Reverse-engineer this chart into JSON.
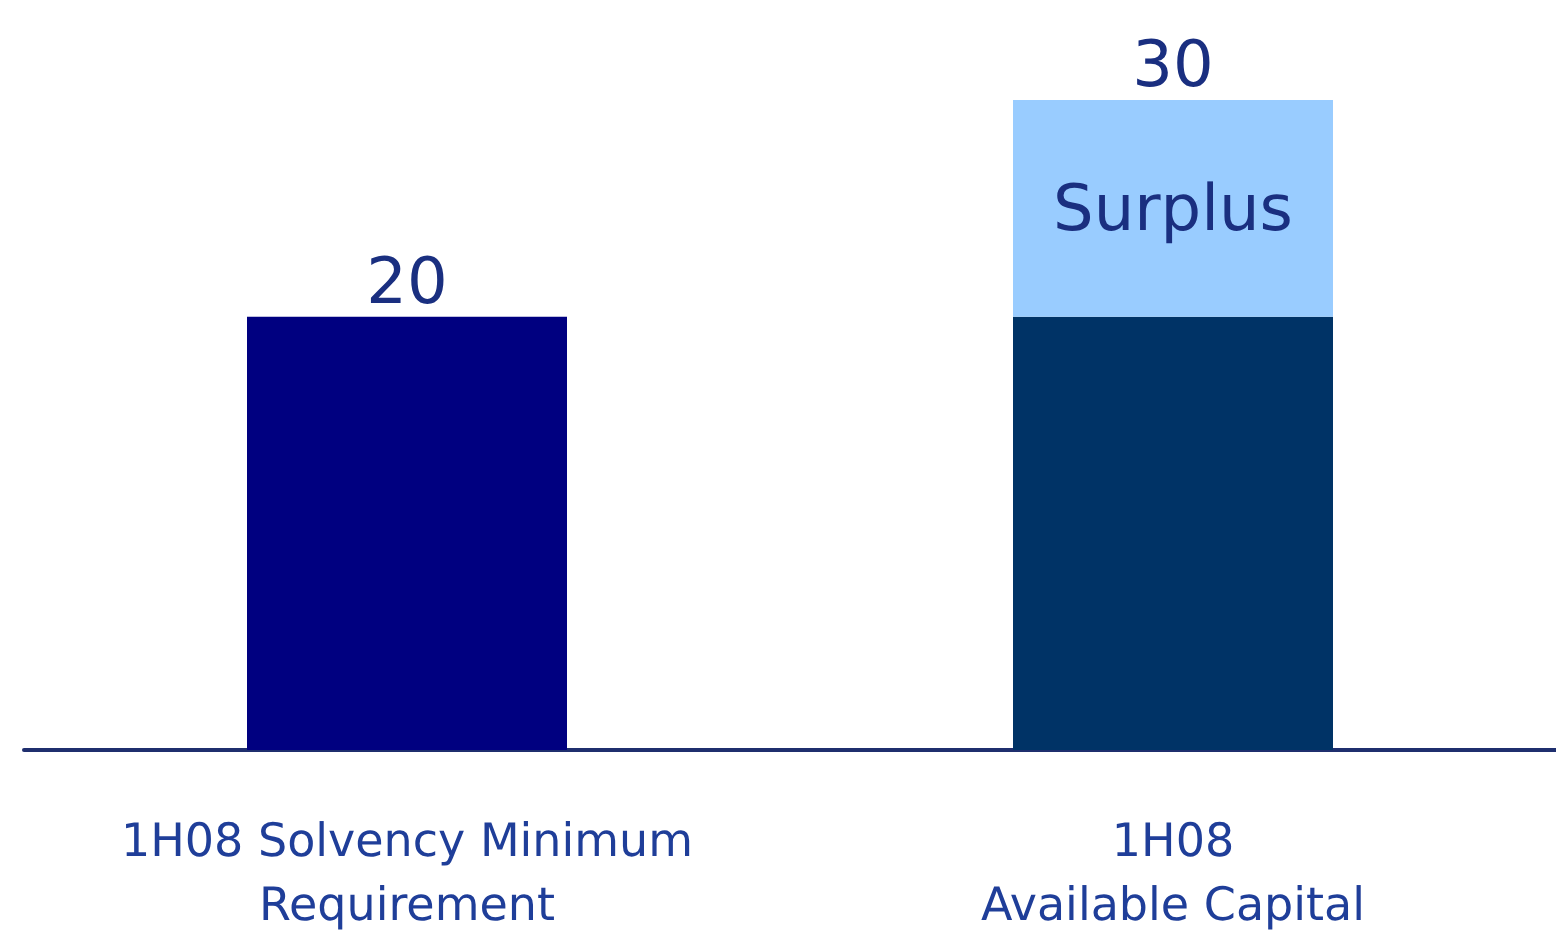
{
  "chart_data": {
    "type": "bar",
    "stacked": true,
    "categories": [
      "1H08 Solvency Minimum\nRequirement",
      "1H08\nAvailable Capital"
    ],
    "series": [
      {
        "colors": [
          "#000080",
          "#003366"
        ],
        "color": "#003366",
        "values": [
          20,
          20
        ],
        "value_labels": [
          "20",
          null
        ]
      },
      {
        "name": "Surplus",
        "color": "#99ccff",
        "values": [
          null,
          10
        ]
      }
    ],
    "totals": [
      null,
      "30"
    ],
    "legend": false
  }
}
